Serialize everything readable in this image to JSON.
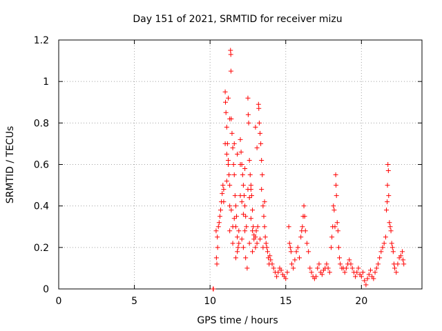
{
  "chart_data": {
    "type": "scatter",
    "title": "Day 151 of 2021, SRMTID for receiver mizu",
    "xlabel": "GPS time / hours",
    "ylabel": "SRMTID / TECUs",
    "xlim": [
      0,
      24
    ],
    "ylim": [
      0,
      1.2
    ],
    "xticks": [
      0,
      5,
      10,
      15,
      20
    ],
    "yticks": [
      0,
      0.2,
      0.4,
      0.6,
      0.8,
      1,
      1.2
    ],
    "xtick_labels": [
      "0",
      "5",
      "10",
      "15",
      "20"
    ],
    "ytick_labels": [
      "0",
      "0.2",
      "0.4",
      "0.6",
      "0.8",
      "1",
      "1.2"
    ],
    "grid": true,
    "marker": "+",
    "color": "#ff0000",
    "series": [
      {
        "name": "SRMTID",
        "points": [
          [
            10.2,
            0.0
          ],
          [
            10.22,
            0.0
          ],
          [
            10.4,
            0.28
          ],
          [
            10.42,
            0.15
          ],
          [
            10.45,
            0.12
          ],
          [
            10.48,
            0.25
          ],
          [
            10.5,
            0.2
          ],
          [
            10.55,
            0.3
          ],
          [
            10.6,
            0.32
          ],
          [
            10.65,
            0.35
          ],
          [
            10.7,
            0.38
          ],
          [
            10.75,
            0.42
          ],
          [
            10.8,
            0.46
          ],
          [
            10.85,
            0.5
          ],
          [
            10.9,
            0.48
          ],
          [
            11.0,
            0.95
          ],
          [
            11.02,
            0.9
          ],
          [
            11.05,
            0.85
          ],
          [
            11.1,
            0.78
          ],
          [
            11.15,
            0.7
          ],
          [
            11.2,
            0.6
          ],
          [
            11.25,
            0.55
          ],
          [
            11.3,
            0.5
          ],
          [
            11.35,
            1.15
          ],
          [
            11.37,
            1.13
          ],
          [
            11.38,
            1.05
          ],
          [
            11.4,
            0.82
          ],
          [
            11.45,
            0.75
          ],
          [
            11.5,
            0.68
          ],
          [
            11.55,
            0.6
          ],
          [
            11.6,
            0.55
          ],
          [
            11.65,
            0.45
          ],
          [
            11.7,
            0.4
          ],
          [
            11.75,
            0.35
          ],
          [
            11.8,
            0.25
          ],
          [
            11.85,
            0.2
          ],
          [
            11.0,
            0.7
          ],
          [
            11.1,
            0.65
          ],
          [
            11.2,
            0.62
          ],
          [
            11.3,
            0.4
          ],
          [
            11.4,
            0.38
          ],
          [
            11.5,
            0.3
          ],
          [
            11.6,
            0.34
          ],
          [
            11.7,
            0.3
          ],
          [
            11.8,
            0.18
          ],
          [
            11.9,
            0.22
          ],
          [
            12.0,
            0.72
          ],
          [
            12.05,
            0.66
          ],
          [
            12.1,
            0.6
          ],
          [
            12.15,
            0.55
          ],
          [
            12.2,
            0.5
          ],
          [
            12.25,
            0.45
          ],
          [
            12.3,
            0.4
          ],
          [
            12.35,
            0.35
          ],
          [
            12.4,
            0.3
          ],
          [
            12.45,
            0.1
          ],
          [
            12.5,
            0.92
          ],
          [
            12.52,
            0.84
          ],
          [
            12.55,
            0.8
          ],
          [
            12.6,
            0.62
          ],
          [
            12.65,
            0.55
          ],
          [
            12.7,
            0.5
          ],
          [
            12.75,
            0.45
          ],
          [
            12.8,
            0.38
          ],
          [
            12.85,
            0.3
          ],
          [
            12.9,
            0.26
          ],
          [
            12.0,
            0.45
          ],
          [
            12.1,
            0.42
          ],
          [
            12.2,
            0.36
          ],
          [
            12.3,
            0.28
          ],
          [
            12.5,
            0.48
          ],
          [
            12.6,
            0.44
          ],
          [
            12.7,
            0.34
          ],
          [
            12.8,
            0.28
          ],
          [
            12.9,
            0.24
          ],
          [
            13.0,
            0.25
          ],
          [
            13.05,
            0.28
          ],
          [
            13.1,
            0.22
          ],
          [
            13.15,
            0.3
          ],
          [
            13.2,
            0.89
          ],
          [
            13.22,
            0.87
          ],
          [
            13.25,
            0.8
          ],
          [
            13.3,
            0.75
          ],
          [
            13.35,
            0.7
          ],
          [
            13.4,
            0.62
          ],
          [
            13.45,
            0.55
          ],
          [
            13.5,
            0.4
          ],
          [
            13.55,
            0.35
          ],
          [
            13.6,
            0.3
          ],
          [
            13.65,
            0.25
          ],
          [
            13.7,
            0.22
          ],
          [
            13.75,
            0.2
          ],
          [
            13.8,
            0.18
          ],
          [
            13.85,
            0.15
          ],
          [
            13.9,
            0.12
          ],
          [
            13.95,
            0.16
          ],
          [
            14.0,
            0.14
          ],
          [
            14.1,
            0.12
          ],
          [
            14.2,
            0.1
          ],
          [
            14.3,
            0.08
          ],
          [
            14.4,
            0.06
          ],
          [
            14.5,
            0.08
          ],
          [
            14.6,
            0.1
          ],
          [
            14.7,
            0.09
          ],
          [
            14.8,
            0.07
          ],
          [
            14.9,
            0.06
          ],
          [
            15.0,
            0.05
          ],
          [
            15.1,
            0.08
          ],
          [
            15.2,
            0.3
          ],
          [
            15.25,
            0.22
          ],
          [
            15.3,
            0.2
          ],
          [
            15.35,
            0.18
          ],
          [
            15.4,
            0.12
          ],
          [
            15.5,
            0.1
          ],
          [
            15.6,
            0.14
          ],
          [
            15.7,
            0.18
          ],
          [
            15.8,
            0.2
          ],
          [
            15.9,
            0.15
          ],
          [
            16.0,
            0.25
          ],
          [
            16.05,
            0.28
          ],
          [
            16.1,
            0.3
          ],
          [
            16.15,
            0.35
          ],
          [
            16.2,
            0.4
          ],
          [
            16.25,
            0.35
          ],
          [
            16.3,
            0.28
          ],
          [
            16.4,
            0.22
          ],
          [
            16.5,
            0.18
          ],
          [
            16.6,
            0.1
          ],
          [
            16.7,
            0.08
          ],
          [
            16.8,
            0.06
          ],
          [
            16.9,
            0.05
          ],
          [
            17.0,
            0.06
          ],
          [
            17.1,
            0.1
          ],
          [
            17.2,
            0.12
          ],
          [
            17.3,
            0.08
          ],
          [
            17.4,
            0.07
          ],
          [
            17.5,
            0.09
          ],
          [
            17.6,
            0.1
          ],
          [
            17.7,
            0.12
          ],
          [
            17.8,
            0.1
          ],
          [
            17.9,
            0.08
          ],
          [
            18.0,
            0.2
          ],
          [
            18.05,
            0.25
          ],
          [
            18.1,
            0.3
          ],
          [
            18.15,
            0.4
          ],
          [
            18.2,
            0.38
          ],
          [
            18.25,
            0.3
          ],
          [
            18.3,
            0.55
          ],
          [
            18.32,
            0.5
          ],
          [
            18.35,
            0.45
          ],
          [
            18.4,
            0.32
          ],
          [
            18.45,
            0.28
          ],
          [
            18.5,
            0.2
          ],
          [
            18.55,
            0.15
          ],
          [
            18.6,
            0.12
          ],
          [
            18.7,
            0.1
          ],
          [
            18.8,
            0.1
          ],
          [
            18.9,
            0.08
          ],
          [
            19.0,
            0.1
          ],
          [
            19.1,
            0.12
          ],
          [
            19.2,
            0.14
          ],
          [
            19.3,
            0.12
          ],
          [
            19.4,
            0.1
          ],
          [
            19.5,
            0.08
          ],
          [
            19.6,
            0.06
          ],
          [
            19.7,
            0.08
          ],
          [
            19.8,
            0.1
          ],
          [
            19.9,
            0.07
          ],
          [
            20.0,
            0.06
          ],
          [
            20.1,
            0.08
          ],
          [
            20.2,
            0.04
          ],
          [
            20.3,
            0.02
          ],
          [
            20.4,
            0.05
          ],
          [
            20.5,
            0.07
          ],
          [
            20.6,
            0.09
          ],
          [
            20.7,
            0.06
          ],
          [
            20.8,
            0.05
          ],
          [
            20.9,
            0.08
          ],
          [
            21.0,
            0.1
          ],
          [
            21.1,
            0.12
          ],
          [
            21.2,
            0.15
          ],
          [
            21.3,
            0.18
          ],
          [
            21.4,
            0.2
          ],
          [
            21.5,
            0.22
          ],
          [
            21.6,
            0.25
          ],
          [
            21.65,
            0.38
          ],
          [
            21.7,
            0.42
          ],
          [
            21.72,
            0.5
          ],
          [
            21.75,
            0.6
          ],
          [
            21.78,
            0.57
          ],
          [
            21.8,
            0.45
          ],
          [
            21.85,
            0.32
          ],
          [
            21.9,
            0.3
          ],
          [
            21.95,
            0.28
          ],
          [
            22.0,
            0.22
          ],
          [
            22.05,
            0.2
          ],
          [
            22.1,
            0.18
          ],
          [
            22.15,
            0.12
          ],
          [
            22.2,
            0.1
          ],
          [
            22.3,
            0.08
          ],
          [
            22.4,
            0.12
          ],
          [
            22.5,
            0.15
          ],
          [
            22.6,
            0.16
          ],
          [
            22.7,
            0.18
          ],
          [
            22.75,
            0.14
          ],
          [
            22.8,
            0.12
          ],
          [
            11.2,
            0.92
          ],
          [
            11.3,
            0.82
          ],
          [
            11.6,
            0.7
          ],
          [
            11.8,
            0.65
          ],
          [
            12.0,
            0.6
          ],
          [
            12.3,
            0.58
          ],
          [
            12.7,
            0.48
          ],
          [
            13.0,
            0.78
          ],
          [
            13.1,
            0.68
          ],
          [
            13.4,
            0.48
          ],
          [
            13.6,
            0.42
          ],
          [
            10.9,
            0.42
          ],
          [
            11.1,
            0.52
          ],
          [
            11.3,
            0.28
          ],
          [
            11.5,
            0.22
          ],
          [
            11.7,
            0.15
          ],
          [
            11.9,
            0.28
          ],
          [
            12.1,
            0.24
          ],
          [
            12.2,
            0.2
          ],
          [
            12.35,
            0.15
          ],
          [
            12.6,
            0.22
          ],
          [
            12.8,
            0.18
          ],
          [
            13.0,
            0.2
          ],
          [
            13.3,
            0.24
          ],
          [
            13.5,
            0.2
          ]
        ]
      }
    ]
  }
}
